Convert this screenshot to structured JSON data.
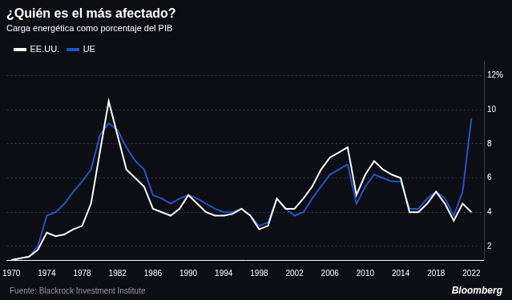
{
  "chart_data": {
    "type": "line",
    "title": "¿Quién es el más afectado?",
    "subtitle": "Carga energética como porcentaje del PIB",
    "annotations": [
      "Fuente: Blackrock Investment Institute",
      "Bloomberg"
    ],
    "x": [
      1970,
      1971,
      1972,
      1973,
      1974,
      1975,
      1976,
      1977,
      1978,
      1979,
      1980,
      1981,
      1982,
      1983,
      1984,
      1985,
      1986,
      1987,
      1988,
      1989,
      1990,
      1991,
      1992,
      1993,
      1994,
      1995,
      1996,
      1997,
      1998,
      1999,
      2000,
      2001,
      2002,
      2003,
      2004,
      2005,
      2006,
      2007,
      2008,
      2009,
      2010,
      2011,
      2012,
      2013,
      2014,
      2015,
      2016,
      2017,
      2018,
      2019,
      2020,
      2021,
      2022
    ],
    "series": [
      {
        "name": "EE.UU.",
        "color": "#ffffff",
        "values": [
          1.2,
          1.3,
          1.4,
          1.8,
          2.8,
          2.6,
          2.7,
          3.0,
          3.2,
          4.5,
          7.5,
          10.5,
          8.5,
          6.5,
          6.0,
          5.5,
          4.2,
          4.0,
          3.8,
          4.2,
          5.0,
          4.5,
          4.0,
          3.8,
          3.8,
          3.9,
          4.2,
          3.8,
          3.0,
          3.2,
          4.8,
          4.2,
          4.2,
          4.8,
          5.5,
          6.5,
          7.2,
          7.5,
          7.8,
          5.0,
          6.2,
          7.0,
          6.5,
          6.2,
          6.0,
          4.0,
          4.0,
          4.5,
          5.2,
          4.5,
          3.5,
          4.5,
          4.0
        ]
      },
      {
        "name": "UE",
        "color": "#2255cc",
        "values": [
          1.2,
          1.3,
          1.4,
          2.0,
          3.8,
          4.0,
          4.5,
          5.2,
          5.8,
          6.5,
          8.5,
          9.2,
          8.8,
          7.8,
          7.0,
          6.5,
          5.0,
          4.8,
          4.5,
          4.8,
          5.0,
          4.8,
          4.5,
          4.2,
          4.0,
          4.0,
          4.2,
          3.8,
          3.2,
          3.4,
          4.8,
          4.2,
          3.8,
          4.0,
          4.8,
          5.5,
          6.2,
          6.5,
          6.8,
          4.5,
          5.5,
          6.2,
          6.0,
          5.8,
          5.8,
          4.2,
          4.2,
          4.8,
          5.2,
          4.8,
          3.8,
          5.2,
          9.5
        ]
      }
    ],
    "xlim": [
      1969.5,
      2023.5
    ],
    "xticks": [
      1970,
      1974,
      1978,
      1982,
      1986,
      1990,
      1994,
      1998,
      2002,
      2006,
      2010,
      2014,
      2018,
      2022
    ],
    "ylim": [
      1.2,
      12.8
    ],
    "yticks": [
      2,
      4,
      6,
      8,
      10,
      {
        "value": 12,
        "label": "12%"
      }
    ],
    "grid": "y",
    "legend": "top"
  }
}
